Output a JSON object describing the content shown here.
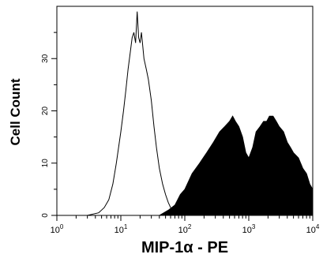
{
  "chart_data": {
    "type": "area",
    "xlabel": "MIP-1α - PE",
    "ylabel": "Cell Count",
    "x_scale": "log",
    "xlim": [
      1,
      10000
    ],
    "ylim": [
      0,
      40
    ],
    "x_ticks": [
      {
        "value": 1,
        "base": "10",
        "exp": "0"
      },
      {
        "value": 10,
        "base": "10",
        "exp": "1"
      },
      {
        "value": 100,
        "base": "10",
        "exp": "2"
      },
      {
        "value": 1000,
        "base": "10",
        "exp": "3"
      },
      {
        "value": 10000,
        "base": "10",
        "exp": "4"
      }
    ],
    "y_ticks": [
      0,
      10,
      20,
      30
    ],
    "grid": false,
    "series": [
      {
        "style": "outline",
        "color": "#000000",
        "x": [
          1,
          3,
          4.5,
          5.5,
          6.5,
          7.5,
          8.5,
          10,
          11,
          12,
          13,
          14,
          15,
          16,
          17,
          18,
          19,
          20,
          21,
          23,
          25,
          27,
          30,
          33,
          36,
          40,
          45,
          50,
          55,
          60,
          70,
          80,
          100
        ],
        "y": [
          0,
          0,
          0.5,
          1.5,
          3,
          6,
          10,
          16,
          20,
          24,
          28,
          31,
          34,
          35,
          33,
          39,
          34,
          33,
          35,
          30,
          28,
          26,
          22,
          17,
          13,
          9,
          6,
          4,
          2.5,
          1.5,
          0.8,
          0.3,
          0
        ]
      },
      {
        "style": "filled",
        "color": "#000000",
        "x": [
          40,
          55,
          70,
          85,
          100,
          130,
          170,
          220,
          280,
          350,
          420,
          500,
          560,
          620,
          700,
          800,
          900,
          1000,
          1150,
          1300,
          1500,
          1700,
          1900,
          2100,
          2400,
          2700,
          3000,
          3500,
          4000,
          4500,
          5000,
          6000,
          7000,
          8000,
          9000,
          10000
        ],
        "y": [
          0,
          1,
          2,
          4,
          5,
          8,
          10,
          12,
          14,
          16,
          17,
          18,
          19,
          18,
          17,
          15,
          12,
          11,
          13,
          16,
          17,
          18,
          18,
          19,
          19,
          18,
          17,
          16,
          14,
          13,
          12,
          11,
          9,
          8,
          6,
          5
        ]
      }
    ]
  }
}
